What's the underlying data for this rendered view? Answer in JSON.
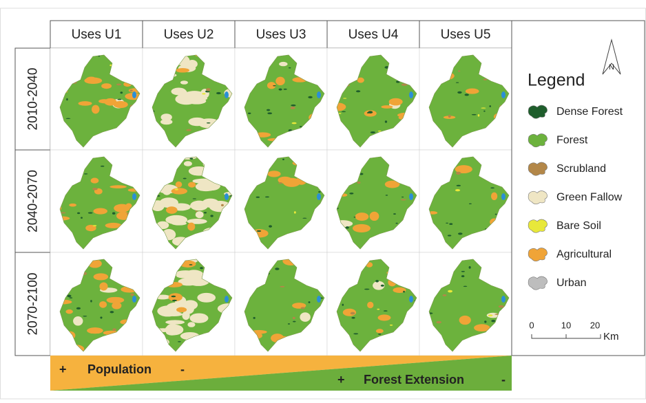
{
  "columns": [
    "Uses U1",
    "Uses U2",
    "Uses U3",
    "Uses U4",
    "Uses U5"
  ],
  "rows": [
    "2010-2040",
    "2040-2070",
    "2070-2100"
  ],
  "legend": {
    "title": "Legend",
    "items": [
      "Dense Forest",
      "Forest",
      "Scrubland",
      "Green Fallow",
      "Bare Soil",
      "Agricultural",
      "Urban"
    ]
  },
  "north": "N",
  "scale": {
    "labels": [
      "0",
      "10",
      "20"
    ],
    "unit": "Km"
  },
  "gradient_bar": {
    "population": {
      "plus": "+",
      "label": "Population",
      "minus": "-"
    },
    "forest": {
      "plus": "+",
      "label": "Forest Extension",
      "minus": "-"
    }
  }
}
